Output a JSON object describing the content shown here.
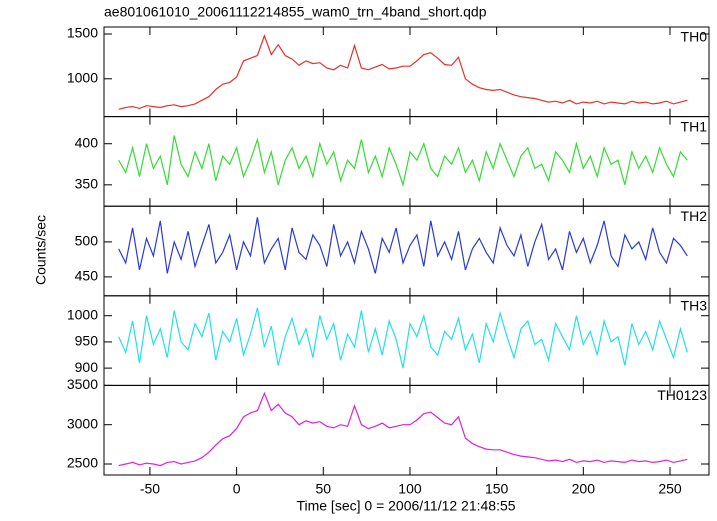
{
  "chart_data": {
    "type": "line",
    "title": "ae801061010_20061112214855_wam0_trn_4band_short.qdp",
    "xlabel": "Time [sec] 0 = 2006/11/12 21:48:55",
    "ylabel": "Counts/sec",
    "xlim": [
      -76.5,
      272.5
    ],
    "xticks": [
      -50,
      0,
      50,
      100,
      150,
      200,
      250
    ],
    "x": [
      -68,
      -64,
      -60,
      -56,
      -52,
      -48,
      -44,
      -40,
      -36,
      -32,
      -28,
      -24,
      -20,
      -16,
      -12,
      -8,
      -4,
      0,
      4,
      8,
      12,
      16,
      20,
      24,
      28,
      32,
      36,
      40,
      44,
      48,
      52,
      56,
      60,
      64,
      68,
      72,
      76,
      80,
      84,
      88,
      92,
      96,
      100,
      104,
      108,
      112,
      116,
      120,
      124,
      128,
      132,
      136,
      140,
      144,
      148,
      152,
      156,
      160,
      164,
      168,
      172,
      176,
      180,
      184,
      188,
      192,
      196,
      200,
      204,
      208,
      212,
      216,
      220,
      224,
      228,
      232,
      236,
      240,
      244,
      248,
      252,
      256,
      260
    ],
    "series": [
      {
        "name": "TH0",
        "color": "#e8302a",
        "ylim": [
          578,
          1578
        ],
        "yticks": [
          1000,
          1500
        ],
        "values": [
          660,
          680,
          690,
          670,
          700,
          690,
          680,
          700,
          710,
          690,
          700,
          720,
          760,
          800,
          880,
          940,
          960,
          1020,
          1200,
          1230,
          1260,
          1480,
          1270,
          1380,
          1260,
          1220,
          1150,
          1200,
          1170,
          1180,
          1120,
          1100,
          1150,
          1120,
          1370,
          1120,
          1100,
          1130,
          1160,
          1110,
          1120,
          1140,
          1140,
          1200,
          1270,
          1290,
          1230,
          1160,
          1150,
          1240,
          1000,
          940,
          900,
          880,
          870,
          880,
          850,
          820,
          800,
          790,
          780,
          760,
          740,
          750,
          730,
          760,
          720,
          740,
          730,
          750,
          720,
          740,
          730,
          720,
          750,
          730,
          740,
          720,
          730,
          750,
          720,
          740,
          760
        ]
      },
      {
        "name": "TH1",
        "color": "#33dd33",
        "ylim": [
          324,
          433
        ],
        "yticks": [
          350,
          400
        ],
        "values": [
          380,
          365,
          395,
          360,
          400,
          370,
          385,
          350,
          410,
          375,
          360,
          390,
          370,
          400,
          355,
          385,
          375,
          395,
          360,
          380,
          405,
          365,
          390,
          350,
          380,
          395,
          370,
          385,
          360,
          400,
          375,
          390,
          355,
          380,
          370,
          405,
          365,
          385,
          360,
          395,
          375,
          350,
          390,
          380,
          400,
          370,
          360,
          385,
          375,
          395,
          365,
          380,
          355,
          390,
          370,
          400,
          380,
          360,
          385,
          395,
          370,
          375,
          355,
          390,
          380,
          365,
          400,
          370,
          385,
          360,
          395,
          375,
          380,
          350,
          390,
          370,
          385,
          365,
          395,
          375,
          360,
          390,
          380
        ]
      },
      {
        "name": "TH2",
        "color": "#2a3ad8",
        "ylim": [
          423,
          551
        ],
        "yticks": [
          450,
          500
        ],
        "values": [
          490,
          470,
          520,
          460,
          505,
          480,
          530,
          455,
          500,
          475,
          515,
          465,
          495,
          525,
          470,
          485,
          510,
          460,
          500,
          480,
          535,
          470,
          490,
          505,
          460,
          520,
          485,
          475,
          510,
          495,
          465,
          525,
          480,
          500,
          470,
          515,
          490,
          455,
          505,
          485,
          520,
          470,
          495,
          510,
          465,
          530,
          480,
          500,
          475,
          515,
          460,
          490,
          505,
          485,
          470,
          520,
          495,
          480,
          510,
          465,
          500,
          525,
          475,
          490,
          460,
          515,
          485,
          505,
          470,
          495,
          530,
          480,
          465,
          510,
          490,
          500,
          475,
          520,
          485,
          470,
          505,
          495,
          480
        ]
      },
      {
        "name": "TH3",
        "color": "#22e0e8",
        "ylim": [
          867,
          1038
        ],
        "yticks": [
          900,
          950,
          1000
        ],
        "values": [
          960,
          930,
          990,
          910,
          1000,
          945,
          975,
          920,
          1010,
          950,
          935,
          985,
          960,
          1005,
          915,
          970,
          950,
          995,
          925,
          965,
          1015,
          940,
          980,
          905,
          960,
          995,
          945,
          975,
          920,
          1000,
          955,
          985,
          915,
          965,
          940,
          1010,
          930,
          975,
          925,
          990,
          955,
          900,
          985,
          960,
          1000,
          940,
          925,
          970,
          955,
          995,
          935,
          965,
          910,
          985,
          950,
          1005,
          960,
          920,
          975,
          990,
          945,
          955,
          915,
          985,
          960,
          935,
          1000,
          945,
          970,
          925,
          990,
          950,
          960,
          905,
          985,
          945,
          970,
          935,
          990,
          955,
          920,
          975,
          930
        ]
      },
      {
        "name": "TH0123",
        "color": "#e020e0",
        "ylim": [
          2360,
          3500
        ],
        "yticks": [
          2500,
          3000,
          3500
        ],
        "values": [
          2480,
          2500,
          2520,
          2490,
          2510,
          2500,
          2480,
          2520,
          2530,
          2500,
          2520,
          2540,
          2580,
          2650,
          2740,
          2820,
          2860,
          2950,
          3100,
          3150,
          3180,
          3400,
          3180,
          3260,
          3150,
          3100,
          3000,
          3050,
          3020,
          3040,
          2980,
          2960,
          3000,
          2980,
          3240,
          3000,
          2950,
          2980,
          3020,
          2960,
          2980,
          3000,
          3000,
          3060,
          3140,
          3160,
          3090,
          3020,
          3000,
          3100,
          2830,
          2760,
          2720,
          2690,
          2680,
          2680,
          2650,
          2620,
          2600,
          2590,
          2580,
          2560,
          2540,
          2550,
          2530,
          2560,
          2520,
          2540,
          2530,
          2550,
          2520,
          2540,
          2530,
          2520,
          2550,
          2530,
          2540,
          2520,
          2530,
          2550,
          2520,
          2540,
          2560
        ]
      }
    ]
  }
}
